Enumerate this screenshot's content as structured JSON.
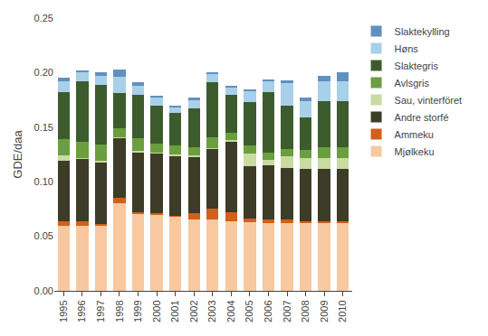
{
  "chart_data": {
    "type": "bar",
    "stacked": true,
    "ylabel": "GDE/daa",
    "categories": [
      "1995",
      "1996",
      "1997",
      "1998",
      "1999",
      "2000",
      "2001",
      "2002",
      "2003",
      "2004",
      "2005",
      "2006",
      "2007",
      "2008",
      "2009",
      "2010"
    ],
    "series": [
      {
        "name": "Mjølkeku",
        "color": "#F8C8A0",
        "values": [
          0.06,
          0.06,
          0.06,
          0.08,
          0.07,
          0.07,
          0.068,
          0.065,
          0.065,
          0.064,
          0.063,
          0.062,
          0.062,
          0.062,
          0.062,
          0.062
        ]
      },
      {
        "name": "Ammeku",
        "color": "#D2601A",
        "values": [
          0.004,
          0.004,
          0.001,
          0.005,
          0.002,
          0.001,
          0.001,
          0.006,
          0.01,
          0.008,
          0.003,
          0.003,
          0.003,
          0.002,
          0.002,
          0.002
        ]
      },
      {
        "name": "Andre storfé",
        "color": "#3C3C28",
        "values": [
          0.055,
          0.057,
          0.057,
          0.055,
          0.055,
          0.055,
          0.055,
          0.052,
          0.055,
          0.065,
          0.048,
          0.05,
          0.048,
          0.048,
          0.048,
          0.048
        ]
      },
      {
        "name": "Sau, vinterföret",
        "color": "#C8DBA0",
        "values": [
          0.005,
          0.001,
          0.001,
          0.001,
          0.001,
          0.001,
          0.001,
          0.001,
          0.001,
          0.001,
          0.012,
          0.005,
          0.01,
          0.01,
          0.01,
          0.01
        ]
      },
      {
        "name": "Avlsgris",
        "color": "#6B9E3E",
        "values": [
          0.015,
          0.015,
          0.015,
          0.008,
          0.012,
          0.008,
          0.008,
          0.008,
          0.01,
          0.007,
          0.007,
          0.007,
          0.007,
          0.007,
          0.01,
          0.01
        ]
      },
      {
        "name": "Slaktegris",
        "color": "#3D5C2E",
        "values": [
          0.043,
          0.055,
          0.055,
          0.032,
          0.04,
          0.035,
          0.03,
          0.035,
          0.05,
          0.035,
          0.04,
          0.055,
          0.04,
          0.03,
          0.042,
          0.042
        ]
      },
      {
        "name": "Høns",
        "color": "#A8D0E8",
        "values": [
          0.01,
          0.008,
          0.008,
          0.015,
          0.008,
          0.007,
          0.005,
          0.008,
          0.008,
          0.006,
          0.01,
          0.01,
          0.02,
          0.015,
          0.018,
          0.018
        ]
      },
      {
        "name": "Slaktekylling",
        "color": "#6090C0",
        "values": [
          0.003,
          0.002,
          0.003,
          0.007,
          0.003,
          0.002,
          0.002,
          0.002,
          0.001,
          0.002,
          0.002,
          0.002,
          0.003,
          0.003,
          0.005,
          0.008
        ]
      }
    ],
    "ylim": [
      0,
      0.25
    ],
    "yticks": [
      {
        "value": 0,
        "label": "0.00"
      },
      0.05,
      {
        "value": 0.1,
        "label": "0.10"
      },
      0.15,
      {
        "value": 0.2,
        "label": "0.20"
      },
      0.25
    ],
    "grid": false,
    "legend": "right"
  }
}
